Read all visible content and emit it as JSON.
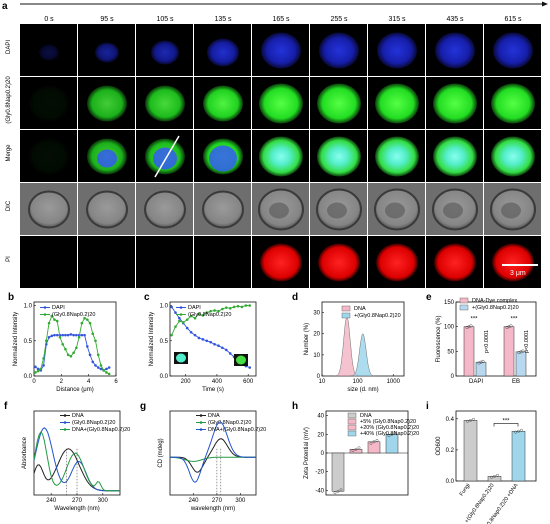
{
  "panel_labels": [
    "a",
    "b",
    "c",
    "d",
    "e",
    "f",
    "g",
    "h",
    "i"
  ],
  "panel_a": {
    "times": [
      "0 s",
      "95 s",
      "105 s",
      "135 s",
      "165 s",
      "255 s",
      "315 s",
      "435 s",
      "615 s"
    ],
    "rows": [
      "DAPI",
      "(Gly0.8Nap0.2)20",
      "Merge",
      "DIC",
      "PI"
    ],
    "scale_bar": "3 μm"
  },
  "chart_data": [
    {
      "panel": "b",
      "type": "line",
      "xlabel": "Distance (μm)",
      "ylabel": "Normalized Intensity",
      "xlim": [
        0,
        6
      ],
      "ylim": [
        0,
        1.05
      ],
      "xticks": [
        "0",
        "2",
        "4",
        "6"
      ],
      "yticks": [
        "0.0",
        "0.5",
        "1.0"
      ],
      "series": [
        {
          "name": "DAPI",
          "color": "#3355dd",
          "x": [
            0.1,
            0.3,
            0.5,
            0.7,
            0.9,
            1.1,
            1.3,
            1.5,
            1.7,
            1.9,
            2.1,
            2.3,
            2.5,
            2.7,
            2.9,
            3.1,
            3.3,
            3.5,
            3.7,
            3.9,
            4.1,
            4.3,
            4.5,
            4.7,
            4.9,
            5.1,
            5.3,
            5.5
          ],
          "y": [
            0.13,
            0.1,
            0.08,
            0.15,
            0.45,
            0.55,
            0.57,
            0.58,
            0.58,
            0.58,
            0.58,
            0.58,
            0.58,
            0.59,
            0.58,
            0.58,
            0.58,
            0.58,
            0.58,
            0.42,
            0.3,
            0.2,
            0.15,
            0.12,
            0.1,
            0.08,
            0.1,
            0.12
          ]
        },
        {
          "name": "(Gly0.8Nap0.2)20",
          "color": "#33aa33",
          "x": [
            0.1,
            0.3,
            0.5,
            0.7,
            0.9,
            1.1,
            1.3,
            1.5,
            1.7,
            1.9,
            2.1,
            2.3,
            2.5,
            2.7,
            2.9,
            3.1,
            3.3,
            3.5,
            3.7,
            3.9,
            4.1,
            4.3,
            4.5,
            4.7,
            4.9,
            5.1,
            5.3,
            5.5
          ],
          "y": [
            0.05,
            0.07,
            0.1,
            0.25,
            0.5,
            0.75,
            0.85,
            0.8,
            0.78,
            0.55,
            0.45,
            0.38,
            0.3,
            0.28,
            0.33,
            0.4,
            0.55,
            0.75,
            0.82,
            0.8,
            0.75,
            0.6,
            0.5,
            0.3,
            0.15,
            0.08,
            0.05,
            0.03
          ]
        }
      ]
    },
    {
      "panel": "c",
      "type": "line",
      "xlabel": "Time (s)",
      "ylabel": "Normalized Intensity",
      "xlim": [
        100,
        650
      ],
      "ylim": [
        0,
        1.05
      ],
      "xticks": [
        "200",
        "400",
        "600"
      ],
      "yticks": [
        "0.0",
        "0.5",
        "1.0"
      ],
      "series": [
        {
          "name": "DAPI",
          "color": "#3355dd",
          "x": [
            110,
            135,
            160,
            185,
            210,
            235,
            260,
            285,
            310,
            335,
            360,
            385,
            410,
            435,
            460,
            485,
            510,
            535,
            560,
            585,
            610
          ],
          "y": [
            0.98,
            0.9,
            0.82,
            0.75,
            0.68,
            0.62,
            0.58,
            0.54,
            0.52,
            0.5,
            0.48,
            0.45,
            0.43,
            0.4,
            0.37,
            0.32,
            0.27,
            0.22,
            0.18,
            0.14,
            0.12
          ]
        },
        {
          "name": "(Gly0.8Nap0.2)20",
          "color": "#33aa33",
          "x": [
            110,
            135,
            160,
            185,
            210,
            235,
            260,
            285,
            310,
            335,
            360,
            385,
            410,
            435,
            460,
            485,
            510,
            535,
            560,
            585,
            610
          ],
          "y": [
            0.58,
            0.7,
            0.78,
            0.76,
            0.8,
            0.85,
            0.82,
            0.88,
            0.86,
            0.9,
            0.92,
            0.93,
            0.92,
            0.95,
            0.97,
            0.96,
            0.98,
            0.99,
            0.98,
            1.0,
            1.0
          ]
        }
      ]
    },
    {
      "panel": "d",
      "type": "area",
      "xlabel": "size (d. nm)",
      "ylabel": "Number (%)",
      "xscale": "log",
      "xlim": [
        10,
        2000
      ],
      "ylim": [
        0,
        35
      ],
      "xticks": [
        "10",
        "100",
        "1000"
      ],
      "yticks": [
        "0",
        "10",
        "20",
        "30"
      ],
      "series": [
        {
          "name": "DNA",
          "color": "#f4b8c8",
          "peak": 50,
          "height": 28
        },
        {
          "name": "+(Gly0.8Nap0.2)20",
          "color": "#9fd6ec",
          "peak": 140,
          "height": 20
        }
      ]
    },
    {
      "panel": "e",
      "type": "bar",
      "ylabel": "Fluorescence (%)",
      "ylim": [
        0,
        150
      ],
      "yticks": [
        "0",
        "50",
        "100",
        "150"
      ],
      "categories": [
        "DAPI",
        "EB"
      ],
      "series": [
        {
          "name": "DNA-Dye complex",
          "color": "#f4b8c8",
          "values": [
            100,
            100
          ]
        },
        {
          "name": "+(Gly0.8Nap0.2)20",
          "color": "#b8d8f0",
          "values": [
            28,
            49
          ]
        }
      ],
      "annotations": [
        "***",
        "***",
        "p<0.0001",
        "p<0.0001"
      ]
    },
    {
      "panel": "f",
      "type": "line",
      "xlabel": "Wavelength (nm)",
      "ylabel": "Absorbance",
      "xlim": [
        220,
        320
      ],
      "xticks": [
        "240",
        "270",
        "300"
      ],
      "series": [
        {
          "name": "DNA",
          "color": "#222222"
        },
        {
          "name": "(Gly0.8Nap0.2)20",
          "color": "#2255cc"
        },
        {
          "name": "DNA+(Gly0.8Nap0.2)20",
          "color": "#229944"
        }
      ]
    },
    {
      "panel": "g",
      "type": "line",
      "xlabel": "wavelength (nm)",
      "ylabel": "CD (mdeg)",
      "xlim": [
        210,
        320
      ],
      "xticks": [
        "240",
        "270",
        "300"
      ],
      "series": [
        {
          "name": "DNA",
          "color": "#222222"
        },
        {
          "name": "(Gly0.8Nap0.2)20",
          "color": "#229944"
        },
        {
          "name": "DNA+(Gly0.8Nap0.2)20",
          "color": "#2255cc"
        }
      ]
    },
    {
      "panel": "h",
      "type": "bar",
      "ylabel": "Zeta Potential (mV)",
      "ylim": [
        -45,
        45
      ],
      "yticks": [
        "-40",
        "-20",
        "0",
        "20",
        "40"
      ],
      "categories": [
        "DNA",
        "+5% (Gly0.8Nap0.2)20",
        "+20% (Gly0.8Nap0.2)20",
        "+40% (Gly0.8Nap0.2)20"
      ],
      "values": [
        -41,
        4,
        12,
        20
      ],
      "colors": [
        "#cccccc",
        "#f4b8c8",
        "#f4b8c8",
        "#9fd6ec"
      ]
    },
    {
      "panel": "i",
      "type": "bar",
      "ylabel": "OD600",
      "ylim": [
        0,
        0.45
      ],
      "yticks": [
        "0.0",
        "0.2",
        "0.4"
      ],
      "categories": [
        "Fungi",
        "+(Gly0.8Nap0.2)20",
        "+(Gly0.8Nap0.2)20 +DNA"
      ],
      "values": [
        0.39,
        0.03,
        0.32
      ],
      "colors": [
        "#cccccc",
        "#cccccc",
        "#9fd6ec"
      ],
      "annotations": [
        "***"
      ]
    }
  ]
}
